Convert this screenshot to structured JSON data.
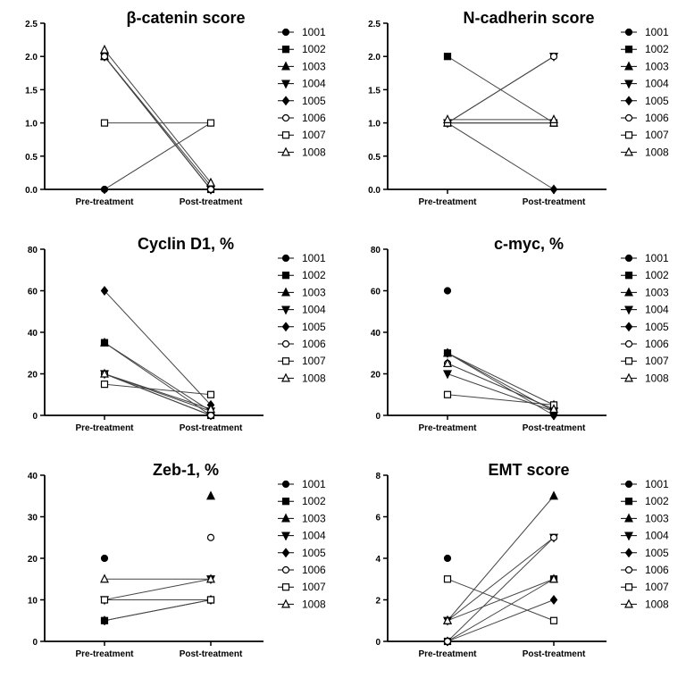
{
  "chart_data": [
    {
      "type": "line",
      "title": "β-catenin score",
      "categories": [
        "Pre-treatment",
        "Post-treatment"
      ],
      "ylim": [
        0,
        2.5
      ],
      "yticks": [
        "0.0",
        "0.5",
        "1.0",
        "1.5",
        "2.0",
        "2.5"
      ],
      "legend_position": "right",
      "series": [
        {
          "name": "1001",
          "values": [
            0,
            1
          ]
        },
        {
          "name": "1002",
          "values": [
            2,
            0
          ]
        },
        {
          "name": "1003",
          "values": [
            2,
            0.05
          ]
        },
        {
          "name": "1004",
          "values": [
            2,
            0
          ]
        },
        {
          "name": "1005",
          "values": [
            2,
            0
          ]
        },
        {
          "name": "1006",
          "values": [
            2,
            0
          ]
        },
        {
          "name": "1007",
          "values": [
            1,
            1
          ]
        },
        {
          "name": "1008",
          "values": [
            2.1,
            0.1
          ]
        }
      ]
    },
    {
      "type": "line",
      "title": "N-cadherin score",
      "categories": [
        "Pre-treatment",
        "Post-treatment"
      ],
      "ylim": [
        0,
        2.5
      ],
      "yticks": [
        "0.0",
        "0.5",
        "1.0",
        "1.5",
        "2.0",
        "2.5"
      ],
      "legend_position": "right",
      "series": [
        {
          "name": "1001",
          "values": [
            1,
            1
          ]
        },
        {
          "name": "1002",
          "values": [
            2,
            1
          ]
        },
        {
          "name": "1003",
          "values": [
            1,
            1
          ]
        },
        {
          "name": "1004",
          "values": [
            1,
            2
          ]
        },
        {
          "name": "1005",
          "values": [
            1,
            0
          ]
        },
        {
          "name": "1006",
          "values": [
            1,
            2
          ]
        },
        {
          "name": "1007",
          "values": [
            1,
            1
          ]
        },
        {
          "name": "1008",
          "values": [
            1.05,
            1.05
          ]
        }
      ]
    },
    {
      "type": "line",
      "title": "Cyclin D1, %",
      "categories": [
        "Pre-treatment",
        "Post-treatment"
      ],
      "ylim": [
        0,
        80
      ],
      "yticks": [
        "0",
        "20",
        "40",
        "60",
        "80"
      ],
      "legend_position": "right",
      "series": [
        {
          "name": "1001",
          "values": [
            20,
            0
          ]
        },
        {
          "name": "1002",
          "values": [
            35,
            0
          ]
        },
        {
          "name": "1003",
          "values": [
            35,
            2
          ]
        },
        {
          "name": "1004",
          "values": [
            20,
            2
          ]
        },
        {
          "name": "1005",
          "values": [
            60,
            5
          ]
        },
        {
          "name": "1006",
          "values": [
            20,
            0
          ]
        },
        {
          "name": "1007",
          "values": [
            15,
            10
          ]
        },
        {
          "name": "1008",
          "values": [
            20,
            3
          ]
        }
      ]
    },
    {
      "type": "line",
      "title": "c-myc, %",
      "categories": [
        "Pre-treatment",
        "Post-treatment"
      ],
      "ylim": [
        0,
        80
      ],
      "yticks": [
        "0",
        "20",
        "40",
        "60",
        "80"
      ],
      "legend_position": "right",
      "series": [
        {
          "name": "1001",
          "values": [
            60,
            null
          ]
        },
        {
          "name": "1002",
          "values": [
            30,
            2
          ]
        },
        {
          "name": "1003",
          "values": [
            30,
            5
          ]
        },
        {
          "name": "1004",
          "values": [
            20,
            2
          ]
        },
        {
          "name": "1005",
          "values": [
            30,
            0
          ]
        },
        {
          "name": "1006",
          "values": [
            25,
            3
          ]
        },
        {
          "name": "1007",
          "values": [
            10,
            5
          ]
        },
        {
          "name": "1008",
          "values": [
            25,
            3
          ]
        }
      ]
    },
    {
      "type": "line",
      "title": "Zeb-1, %",
      "categories": [
        "Pre-treatment",
        "Post-treatment"
      ],
      "ylim": [
        0,
        40
      ],
      "yticks": [
        "0",
        "10",
        "20",
        "30",
        "40"
      ],
      "legend_position": "right",
      "series": [
        {
          "name": "1001",
          "values": [
            20,
            null
          ]
        },
        {
          "name": "1002",
          "values": [
            5,
            10
          ]
        },
        {
          "name": "1003",
          "values": [
            null,
            35
          ]
        },
        {
          "name": "1004",
          "values": [
            10,
            15
          ]
        },
        {
          "name": "1005",
          "values": [
            5,
            10
          ]
        },
        {
          "name": "1006",
          "values": [
            null,
            25
          ]
        },
        {
          "name": "1007",
          "values": [
            10,
            10
          ]
        },
        {
          "name": "1008",
          "values": [
            15,
            15
          ]
        }
      ]
    },
    {
      "type": "line",
      "title": "EMT score",
      "categories": [
        "Pre-treatment",
        "Post-treatment"
      ],
      "ylim": [
        0,
        8
      ],
      "yticks": [
        "0",
        "2",
        "4",
        "6",
        "8"
      ],
      "legend_position": "right",
      "series": [
        {
          "name": "1001",
          "values": [
            4,
            null
          ]
        },
        {
          "name": "1002",
          "values": [
            0,
            3
          ]
        },
        {
          "name": "1003",
          "values": [
            1,
            7
          ]
        },
        {
          "name": "1004",
          "values": [
            1,
            5
          ]
        },
        {
          "name": "1005",
          "values": [
            0,
            2
          ]
        },
        {
          "name": "1006",
          "values": [
            0,
            5
          ]
        },
        {
          "name": "1007",
          "values": [
            3,
            1
          ]
        },
        {
          "name": "1008",
          "values": [
            1,
            3
          ]
        }
      ]
    }
  ]
}
